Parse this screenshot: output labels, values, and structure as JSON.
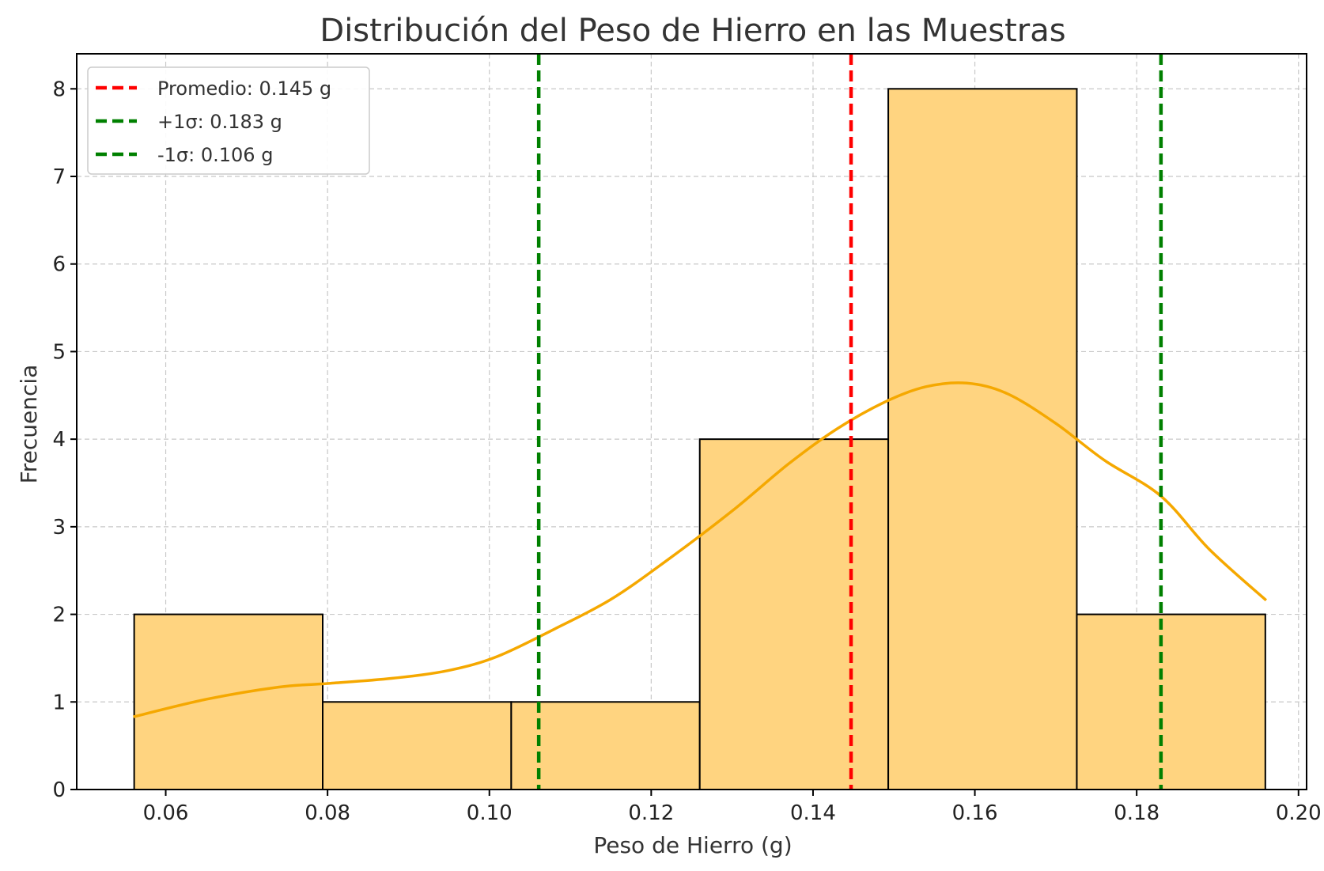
{
  "chart_data": {
    "type": "bar",
    "subtype": "histogram-with-kde",
    "title": "Distribución del Peso de Hierro en las Muestras",
    "xlabel": "Peso de Hierro (g)",
    "ylabel": "Frecuencia",
    "xlim": [
      0.049,
      0.201
    ],
    "ylim": [
      0,
      8.4
    ],
    "xticks": [
      "0.06",
      "0.08",
      "0.10",
      "0.12",
      "0.14",
      "0.16",
      "0.18",
      "0.20"
    ],
    "yticks": [
      "0",
      "1",
      "2",
      "3",
      "4",
      "5",
      "6",
      "7",
      "8"
    ],
    "grid": true,
    "legend_position": "top-left",
    "bins": [
      {
        "start": 0.0561,
        "end": 0.0794,
        "count": 2
      },
      {
        "start": 0.0794,
        "end": 0.1027,
        "count": 1
      },
      {
        "start": 0.1027,
        "end": 0.126,
        "count": 1
      },
      {
        "start": 0.126,
        "end": 0.1493,
        "count": 4
      },
      {
        "start": 0.1493,
        "end": 0.1726,
        "count": 8
      },
      {
        "start": 0.1726,
        "end": 0.1959,
        "count": 2
      }
    ],
    "kde": {
      "x": [
        0.056,
        0.065,
        0.074,
        0.08,
        0.088,
        0.095,
        0.101,
        0.108,
        0.115,
        0.122,
        0.13,
        0.137,
        0.143,
        0.149,
        0.154,
        0.159,
        0.164,
        0.17,
        0.176,
        0.183,
        0.189,
        0.196
      ],
      "y": [
        0.83,
        1.03,
        1.17,
        1.21,
        1.27,
        1.36,
        1.52,
        1.83,
        2.17,
        2.62,
        3.18,
        3.72,
        4.12,
        4.43,
        4.6,
        4.64,
        4.52,
        4.18,
        3.76,
        3.35,
        2.74,
        2.16
      ]
    },
    "vlines": [
      {
        "label": "Promedio: 0.145 g",
        "x": 0.1447,
        "color": "#ff0000"
      },
      {
        "label": "+1σ: 0.183 g",
        "x": 0.183,
        "color": "#008000"
      },
      {
        "label": "-1σ: 0.106 g",
        "x": 0.1061,
        "color": "#008000"
      }
    ],
    "colors": {
      "bar_fill": "#ffd480",
      "bar_edge": "#000000",
      "kde_line": "#f5a800"
    }
  }
}
